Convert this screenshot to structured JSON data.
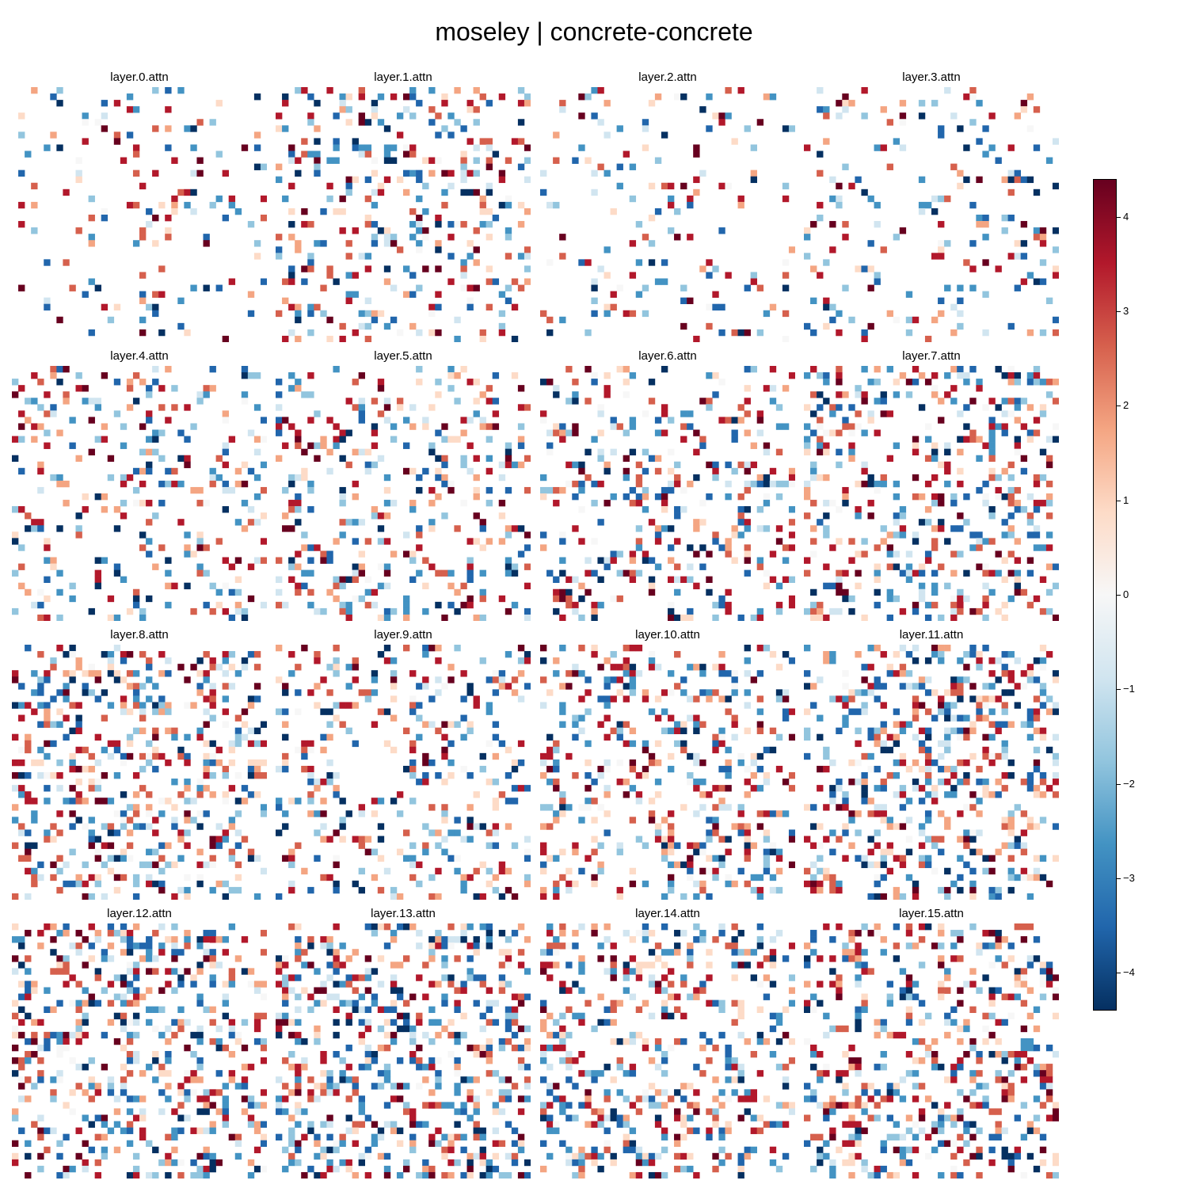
{
  "title": "moseley | concrete-concrete",
  "chart_data": {
    "type": "heatmap",
    "title": "moseley | concrete-concrete",
    "grid_size": [
      40,
      40
    ],
    "panels": [
      {
        "title": "layer.0.attn",
        "density": 0.09
      },
      {
        "title": "layer.1.attn",
        "density": 0.22
      },
      {
        "title": "layer.2.attn",
        "density": 0.1
      },
      {
        "title": "layer.3.attn",
        "density": 0.12
      },
      {
        "title": "layer.4.attn",
        "density": 0.18
      },
      {
        "title": "layer.5.attn",
        "density": 0.22
      },
      {
        "title": "layer.6.attn",
        "density": 0.22
      },
      {
        "title": "layer.7.attn",
        "density": 0.28
      },
      {
        "title": "layer.8.attn",
        "density": 0.3
      },
      {
        "title": "layer.9.attn",
        "density": 0.2
      },
      {
        "title": "layer.10.attn",
        "density": 0.27
      },
      {
        "title": "layer.11.attn",
        "density": 0.3
      },
      {
        "title": "layer.12.attn",
        "density": 0.32
      },
      {
        "title": "layer.13.attn",
        "density": 0.34
      },
      {
        "title": "layer.14.attn",
        "density": 0.28
      },
      {
        "title": "layer.15.attn",
        "density": 0.3
      }
    ],
    "value_range": [
      -4.4,
      4.4
    ],
    "colormap": "RdBu_r",
    "colorbar": {
      "ticks": [
        "4",
        "3",
        "2",
        "1",
        "0",
        "−1",
        "−2",
        "−3",
        "−4"
      ],
      "tick_values": [
        4,
        3,
        2,
        1,
        0,
        -1,
        -2,
        -3,
        -4
      ]
    },
    "colors": [
      "#053061",
      "#2166ac",
      "#4393c3",
      "#92c5de",
      "#d1e5f0",
      "#f7f7f7",
      "#fddbc7",
      "#f4a582",
      "#d6604d",
      "#b2182b",
      "#67001f"
    ]
  }
}
